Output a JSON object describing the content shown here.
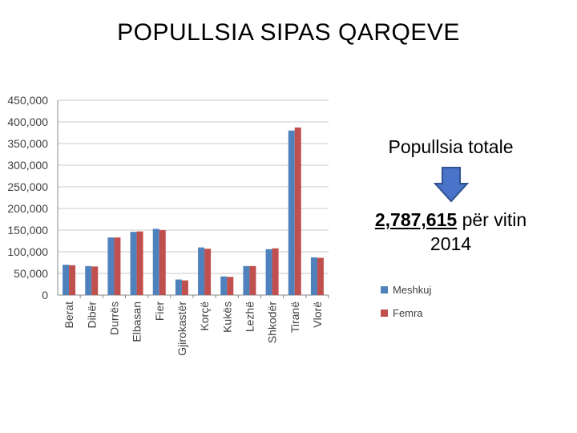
{
  "slide": {
    "title": "POPULLSIA SIPAS QARQEVE"
  },
  "summary": {
    "label": "Popullsia totale",
    "arrow_icon": "down-arrow-icon",
    "arrow_color": "#4a74c9",
    "value": "2,787,615",
    "suffix": "për vitin",
    "year": "2014"
  },
  "chart_data": {
    "type": "bar",
    "title": "",
    "xlabel": "",
    "ylabel": "",
    "ylim": [
      0,
      450000
    ],
    "yticks": [
      0,
      50000,
      100000,
      150000,
      200000,
      250000,
      300000,
      350000,
      400000,
      450000
    ],
    "ytick_labels": [
      "0",
      "50,000",
      "100,000",
      "150,000",
      "200,000",
      "250,000",
      "300,000",
      "350,000",
      "400,000",
      "450,000"
    ],
    "grid": true,
    "legend": "right",
    "categories": [
      "Berat",
      "Dibër",
      "Durrës",
      "Elbasan",
      "Fier",
      "Gjirokastër",
      "Korçë",
      "Kukës",
      "Lezhë",
      "Shkodër",
      "Tiranë",
      "Vlorë"
    ],
    "series": [
      {
        "name": "Meshkuj",
        "color": "#4f81bd",
        "values": [
          70000,
          67000,
          133000,
          146000,
          153000,
          36000,
          110000,
          43000,
          67000,
          106000,
          380000,
          87000
        ]
      },
      {
        "name": "Femra",
        "color": "#c0504d",
        "values": [
          69000,
          66000,
          133000,
          147000,
          150000,
          34000,
          107000,
          42000,
          67000,
          108000,
          387000,
          86000
        ]
      }
    ]
  }
}
